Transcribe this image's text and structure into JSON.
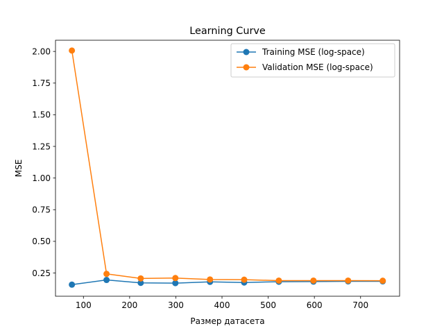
{
  "chart_data": {
    "type": "line",
    "title": "Learning Curve",
    "xlabel": "Размер датасета",
    "ylabel": "MSE",
    "xlim": [
      39.5,
      784.5
    ],
    "ylim": [
      0.0665,
      2.0885
    ],
    "xticks": [
      100,
      200,
      300,
      400,
      500,
      600,
      700
    ],
    "xtick_labels": [
      "100",
      "200",
      "300",
      "400",
      "500",
      "600",
      "700"
    ],
    "yticks": [
      0.25,
      0.5,
      0.75,
      1.0,
      1.25,
      1.5,
      1.75,
      2.0
    ],
    "ytick_labels": [
      "0.25",
      "0.50",
      "0.75",
      "1.00",
      "1.25",
      "1.50",
      "1.75",
      "2.00"
    ],
    "x": [
      75,
      150,
      224,
      299,
      374,
      448,
      523,
      598,
      673,
      748
    ],
    "series": [
      {
        "name": "Training MSE (log-space)",
        "color": "#1f77b4",
        "values": [
          0.158,
          0.195,
          0.172,
          0.17,
          0.18,
          0.175,
          0.181,
          0.182,
          0.184,
          0.184
        ]
      },
      {
        "name": "Validation MSE (log-space)",
        "color": "#ff7f0e",
        "values": [
          2.007,
          0.243,
          0.207,
          0.21,
          0.199,
          0.197,
          0.19,
          0.19,
          0.19,
          0.189
        ]
      }
    ],
    "grid": false,
    "legend_position": "upper right"
  }
}
